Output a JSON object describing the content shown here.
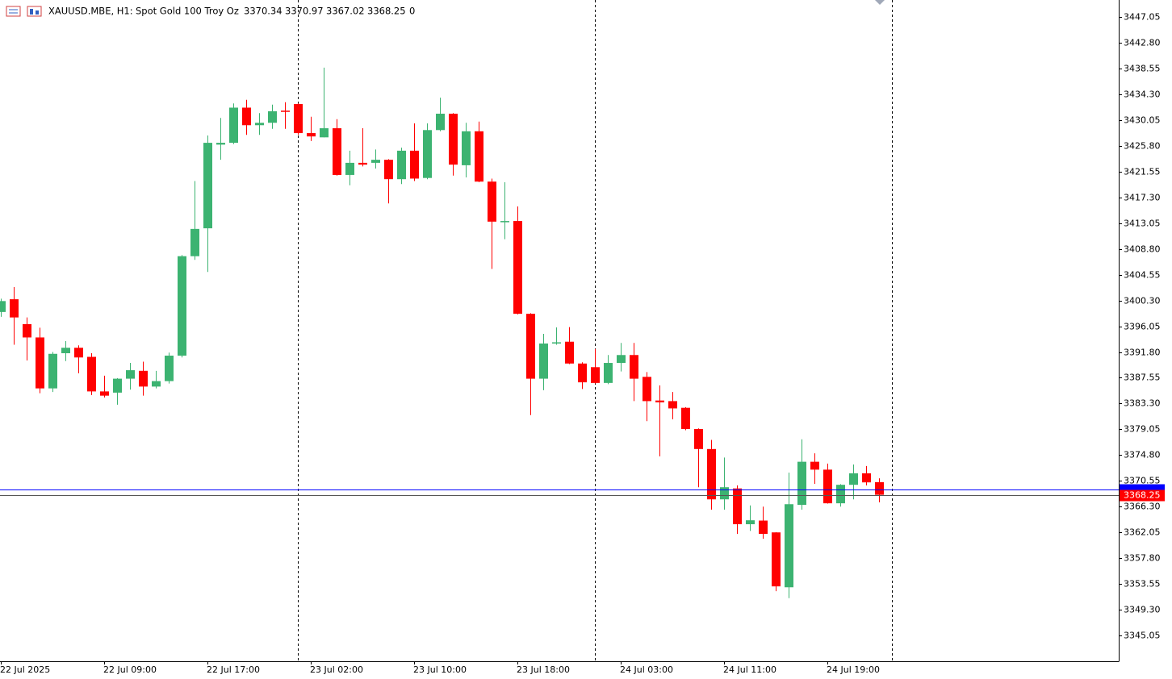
{
  "chart_data": {
    "type": "candlestick",
    "title": "XAUUSD.MBE, H1:",
    "subtitle": "Spot Gold 100 Troy Oz",
    "header_value": 0,
    "categories": [
      "22 Jul 2025",
      null,
      null,
      null,
      null,
      null,
      null,
      null,
      "22 Jul 09:00",
      null,
      null,
      null,
      null,
      null,
      null,
      null,
      "22 Jul 17:00",
      null,
      null,
      null,
      null,
      null,
      null,
      null,
      "23 Jul 02:00",
      null,
      null,
      null,
      null,
      null,
      null,
      null,
      "23 Jul 10:00",
      null,
      null,
      null,
      null,
      null,
      null,
      null,
      "23 Jul 18:00",
      null,
      null,
      null,
      null,
      null,
      null,
      null,
      "24 Jul 03:00",
      null,
      null,
      null,
      null,
      null,
      null,
      null,
      "24 Jul 11:00",
      null,
      null,
      null,
      null,
      null,
      null,
      null,
      "24 Jul 19:00",
      null,
      null,
      null,
      null
    ],
    "open": [
      3398.4,
      3400.5,
      3396.4,
      3394.2,
      3385.8,
      3391.6,
      3392.5,
      3391.0,
      3385.3,
      3385.1,
      3387.4,
      3388.7,
      3386.1,
      3387.0,
      3391.2,
      3407.6,
      3412.2,
      3426.0,
      3426.3,
      3432.1,
      3429.2,
      3429.6,
      3431.6,
      3432.7,
      3427.9,
      3427.2,
      3428.7,
      3421.0,
      3423.0,
      3423.0,
      3423.5,
      3420.3,
      3425.0,
      3420.5,
      3428.4,
      3431.1,
      3422.6,
      3428.2,
      3419.9,
      3413.2,
      3413.4,
      3398.1,
      3387.4,
      3393.2,
      3393.5,
      3389.9,
      3389.3,
      3386.7,
      3390.0,
      3391.3,
      3387.7,
      3383.8,
      3383.7,
      3382.6,
      3379.1,
      3375.8,
      3367.5,
      3369.3,
      3363.4,
      3364.0,
      3362.05,
      3353.0,
      3366.6,
      3373.7,
      3372.4,
      3366.85,
      3369.9,
      3371.8,
      3370.34
    ],
    "high": [
      3400.6,
      3402.5,
      3397.5,
      3395.8,
      3391.8,
      3393.6,
      3392.9,
      3391.6,
      3387.9,
      3387.5,
      3390.0,
      3390.2,
      3388.7,
      3391.7,
      3407.8,
      3420.0,
      3427.5,
      3430.4,
      3432.8,
      3433.4,
      3431.2,
      3432.6,
      3433.0,
      3432.8,
      3430.6,
      3438.7,
      3430.2,
      3425.0,
      3428.7,
      3425.2,
      3423.6,
      3425.5,
      3429.5,
      3429.5,
      3433.75,
      3431.2,
      3429.6,
      3429.8,
      3420.4,
      3419.8,
      3415.8,
      3398.2,
      3394.8,
      3395.85,
      3395.9,
      3390.1,
      3392.3,
      3391.3,
      3393.3,
      3393.3,
      3388.5,
      3386.3,
      3385.2,
      3382.7,
      3379.2,
      3377.3,
      3374.4,
      3369.8,
      3366.5,
      3366.3,
      3362.1,
      3371.9,
      3377.4,
      3375.1,
      3373.4,
      3370.0,
      3373.25,
      3373.0,
      3370.97
    ],
    "low": [
      3397.6,
      3393.0,
      3390.4,
      3385.0,
      3385.2,
      3390.3,
      3388.3,
      3384.7,
      3384.3,
      3383.1,
      3385.6,
      3384.6,
      3385.8,
      3386.6,
      3390.9,
      3407.0,
      3405.0,
      3423.5,
      3426.1,
      3427.6,
      3427.6,
      3428.6,
      3428.6,
      3427.6,
      3426.6,
      3427.2,
      3420.9,
      3419.3,
      3422.4,
      3422.05,
      3416.3,
      3419.5,
      3420.0,
      3420.3,
      3428.2,
      3420.9,
      3420.6,
      3419.8,
      3405.5,
      3410.4,
      3398.0,
      3381.4,
      3385.5,
      3393.0,
      3389.8,
      3385.7,
      3386.6,
      3386.5,
      3388.6,
      3383.7,
      3380.4,
      3374.6,
      3380.7,
      3378.9,
      3369.5,
      3365.8,
      3365.8,
      3361.8,
      3362.3,
      3361.0,
      3352.35,
      3351.2,
      3365.8,
      3370.05,
      3366.8,
      3366.3,
      3367.5,
      3369.8,
      3367.02
    ],
    "close": [
      3400.2,
      3397.5,
      3394.2,
      3385.8,
      3391.5,
      3392.5,
      3390.9,
      3385.3,
      3384.6,
      3387.4,
      3388.8,
      3386.1,
      3387.0,
      3391.2,
      3407.6,
      3412.1,
      3426.3,
      3426.3,
      3432.1,
      3429.2,
      3429.6,
      3431.5,
      3431.4,
      3427.9,
      3427.35,
      3428.7,
      3421.0,
      3423.0,
      3422.7,
      3423.5,
      3420.3,
      3425.0,
      3420.4,
      3428.4,
      3431.1,
      3422.7,
      3428.2,
      3419.9,
      3413.3,
      3413.4,
      3398.1,
      3387.4,
      3393.2,
      3393.4,
      3389.9,
      3386.8,
      3386.7,
      3390.0,
      3391.3,
      3387.4,
      3383.7,
      3383.5,
      3382.5,
      3379.1,
      3375.8,
      3367.5,
      3369.5,
      3363.4,
      3364.05,
      3361.8,
      3353.15,
      3366.7,
      3373.7,
      3372.4,
      3366.85,
      3369.9,
      3371.8,
      3370.3,
      3368.25
    ],
    "up_color": "#3cb371",
    "down_color": "#ff0000",
    "bid": 3368.25,
    "bid_color": "#ff0000",
    "ask": 3369.1,
    "ask_color": "#0000ff",
    "ylim": [
      3340.8,
      3449.85
    ],
    "yticks": [
      3447.05,
      {
        "value": 3442.8,
        "label": "3442.80"
      },
      3438.55,
      {
        "value": 3434.3,
        "label": "3434.30"
      },
      3430.05,
      {
        "value": 3425.8,
        "label": "3425.80"
      },
      3421.55,
      {
        "value": 3417.3,
        "label": "3417.30"
      },
      3413.05,
      {
        "value": 3408.8,
        "label": "3408.80"
      },
      3404.55,
      {
        "value": 3400.3,
        "label": "3400.30"
      },
      3396.05,
      {
        "value": 3391.8,
        "label": "3391.80"
      },
      3387.55,
      {
        "value": 3383.3,
        "label": "3383.30"
      },
      3379.05,
      {
        "value": 3374.8,
        "label": "3374.80"
      },
      3370.55,
      {
        "value": 3366.3,
        "label": "3366.30"
      },
      3362.05,
      {
        "value": 3357.8,
        "label": "3357.80"
      },
      3353.55,
      {
        "value": 3349.3,
        "label": "3349.30"
      },
      3345.05
    ],
    "grid": false
  }
}
